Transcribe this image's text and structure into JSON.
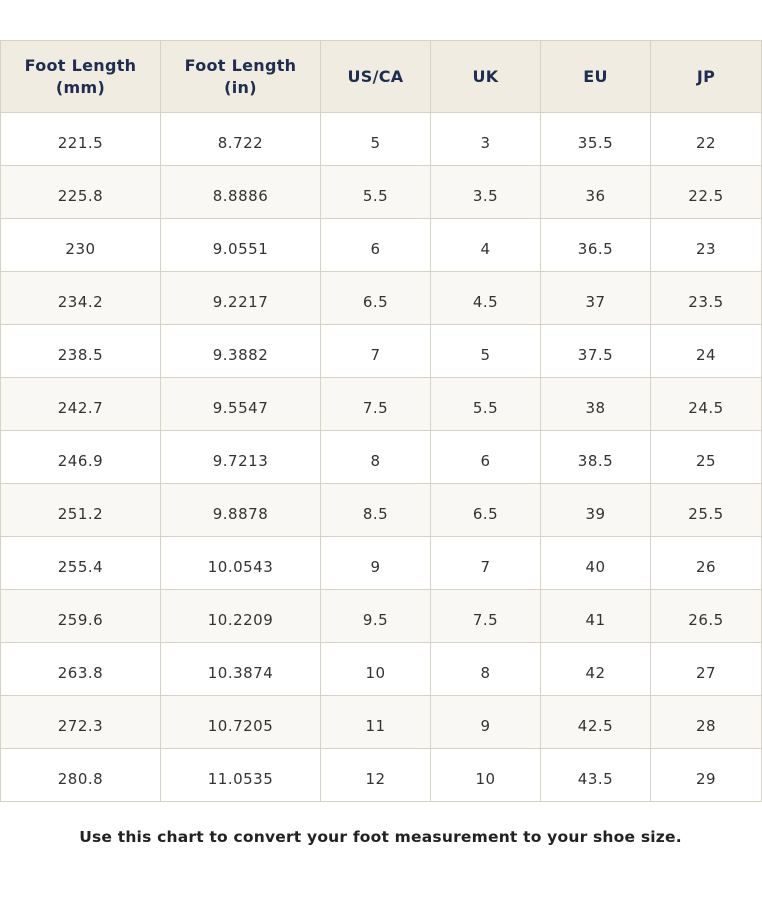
{
  "table": {
    "headers": [
      "Foot Length (mm)",
      "Foot Length (in)",
      "US/CA",
      "UK",
      "EU",
      "JP"
    ],
    "rows": [
      [
        "221.5",
        "8.722",
        "5",
        "3",
        "35.5",
        "22"
      ],
      [
        "225.8",
        "8.8886",
        "5.5",
        "3.5",
        "36",
        "22.5"
      ],
      [
        "230",
        "9.0551",
        "6",
        "4",
        "36.5",
        "23"
      ],
      [
        "234.2",
        "9.2217",
        "6.5",
        "4.5",
        "37",
        "23.5"
      ],
      [
        "238.5",
        "9.3882",
        "7",
        "5",
        "37.5",
        "24"
      ],
      [
        "242.7",
        "9.5547",
        "7.5",
        "5.5",
        "38",
        "24.5"
      ],
      [
        "246.9",
        "9.7213",
        "8",
        "6",
        "38.5",
        "25"
      ],
      [
        "251.2",
        "9.8878",
        "8.5",
        "6.5",
        "39",
        "25.5"
      ],
      [
        "255.4",
        "10.0543",
        "9",
        "7",
        "40",
        "26"
      ],
      [
        "259.6",
        "10.2209",
        "9.5",
        "7.5",
        "41",
        "26.5"
      ],
      [
        "263.8",
        "10.3874",
        "10",
        "8",
        "42",
        "27"
      ],
      [
        "272.3",
        "10.7205",
        "11",
        "9",
        "42.5",
        "28"
      ],
      [
        "280.8",
        "11.0535",
        "12",
        "10",
        "43.5",
        "29"
      ]
    ]
  },
  "caption": "Use this chart to convert your foot measurement to your shoe size."
}
